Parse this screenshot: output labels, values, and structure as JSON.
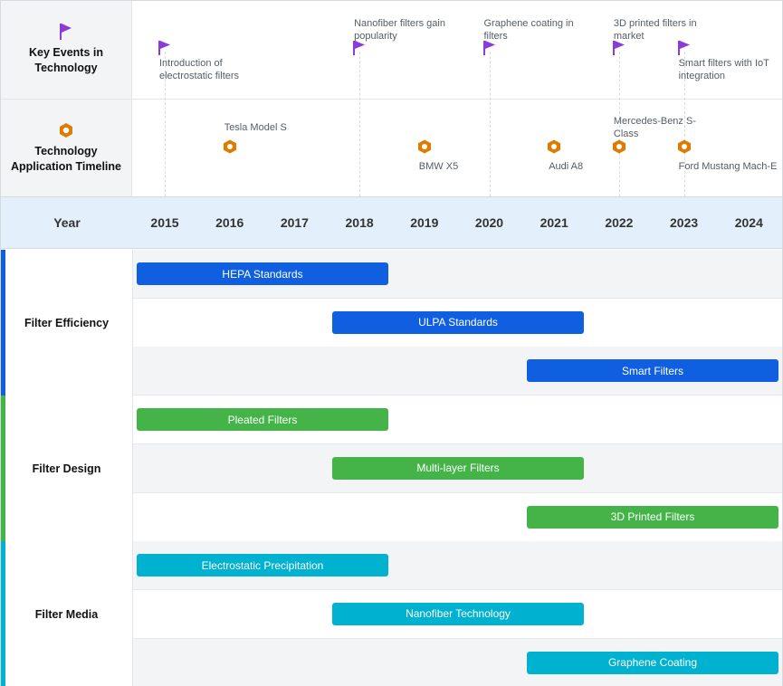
{
  "sections": {
    "key_events_label": "Key Events in Technology",
    "application_label": "Technology Application Timeline",
    "year_label": "Year"
  },
  "colors": {
    "flag": "#8b3bd8",
    "hex": "#e07b00",
    "efficiency": "#0f5fe0",
    "design": "#44b449",
    "media": "#00b2d0"
  },
  "icons": {
    "events": "flag-icon",
    "applications": "hexagon-icon"
  },
  "chart_data": {
    "type": "timeline",
    "years": [
      "2015",
      "2016",
      "2017",
      "2018",
      "2019",
      "2020",
      "2021",
      "2022",
      "2023",
      "2024"
    ],
    "key_events": [
      {
        "year": 2015,
        "text": "Introduction of electrostatic filters"
      },
      {
        "year": 2018,
        "text": "Nanofiber filters gain popularity"
      },
      {
        "year": 2020,
        "text": "Graphene coating in filters"
      },
      {
        "year": 2022,
        "text": "3D printed filters in market"
      },
      {
        "year": 2023,
        "text": "Smart filters with IoT integration"
      }
    ],
    "applications": [
      {
        "year": 2016,
        "text": "Tesla Model S"
      },
      {
        "year": 2019,
        "text": "BMW X5"
      },
      {
        "year": 2021,
        "text": "Audi A8"
      },
      {
        "year": 2022,
        "text": "Mercedes-Benz S-Class"
      },
      {
        "year": 2023,
        "text": "Ford Mustang Mach-E"
      }
    ],
    "categories": [
      {
        "name": "Filter Efficiency",
        "color_key": "efficiency",
        "bars": [
          {
            "label": "HEPA Standards",
            "start": 2015,
            "end": 2018
          },
          {
            "label": "ULPA Standards",
            "start": 2018,
            "end": 2021
          },
          {
            "label": "Smart Filters",
            "start": 2021,
            "end": 2024
          }
        ]
      },
      {
        "name": "Filter Design",
        "color_key": "design",
        "bars": [
          {
            "label": "Pleated Filters",
            "start": 2015,
            "end": 2018
          },
          {
            "label": "Multi-layer Filters",
            "start": 2018,
            "end": 2021
          },
          {
            "label": "3D Printed Filters",
            "start": 2021,
            "end": 2024
          }
        ]
      },
      {
        "name": "Filter Media",
        "color_key": "media",
        "bars": [
          {
            "label": "Electrostatic Precipitation",
            "start": 2015,
            "end": 2018
          },
          {
            "label": "Nanofiber Technology",
            "start": 2018,
            "end": 2021
          },
          {
            "label": "Graphene Coating",
            "start": 2021,
            "end": 2024
          }
        ]
      }
    ]
  }
}
